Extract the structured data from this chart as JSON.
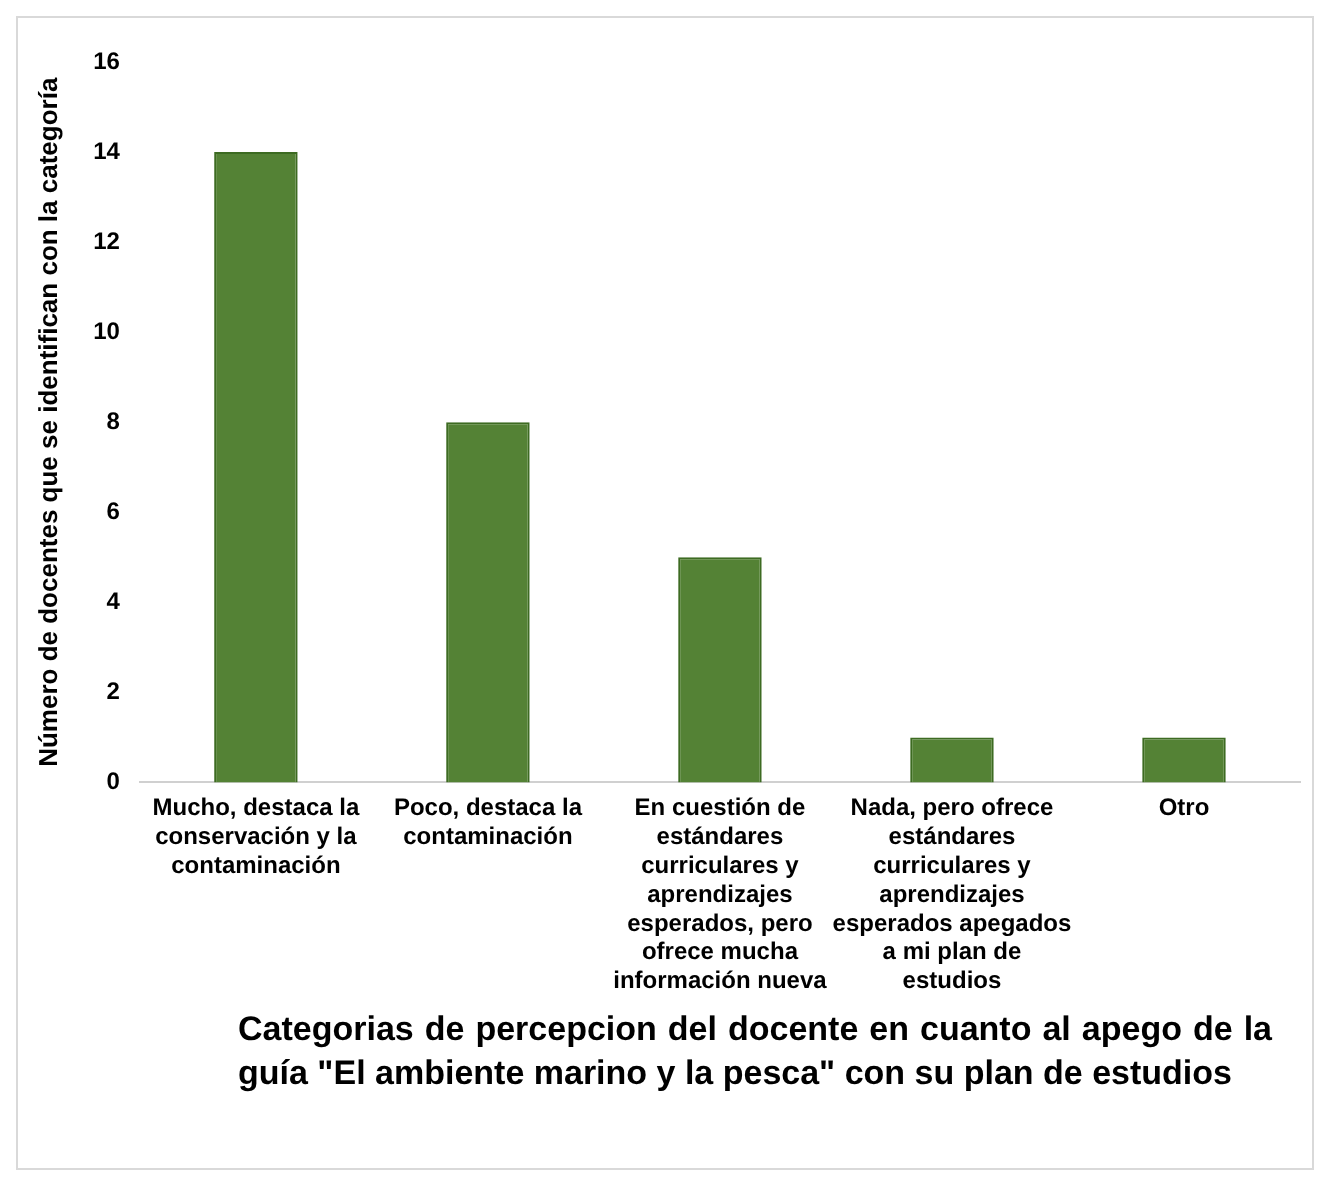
{
  "chart_data": {
    "type": "bar",
    "xlabel": "Categorias de percepcion del docente en cuanto al apego de la guía \"El ambiente marino y la pesca\" con su plan de estudios",
    "ylabel": "Número de docentes que se identifican con la categoría",
    "categories": [
      "Mucho, destaca la conservación y la contaminación",
      "Poco, destaca la contaminación",
      "En cuestión de estándares curriculares y aprendizajes esperados, pero ofrece mucha información nueva",
      "Nada, pero ofrece estándares curriculares y aprendizajes esperados apegados a mi plan de estudios",
      "Otro"
    ],
    "values": [
      14,
      8,
      5,
      1,
      1
    ],
    "color": "#548235",
    "ylim": [
      0,
      16
    ],
    "yticks": [
      0,
      2,
      4,
      6,
      8,
      10,
      12,
      14,
      16
    ],
    "grid": false,
    "legend": false
  }
}
